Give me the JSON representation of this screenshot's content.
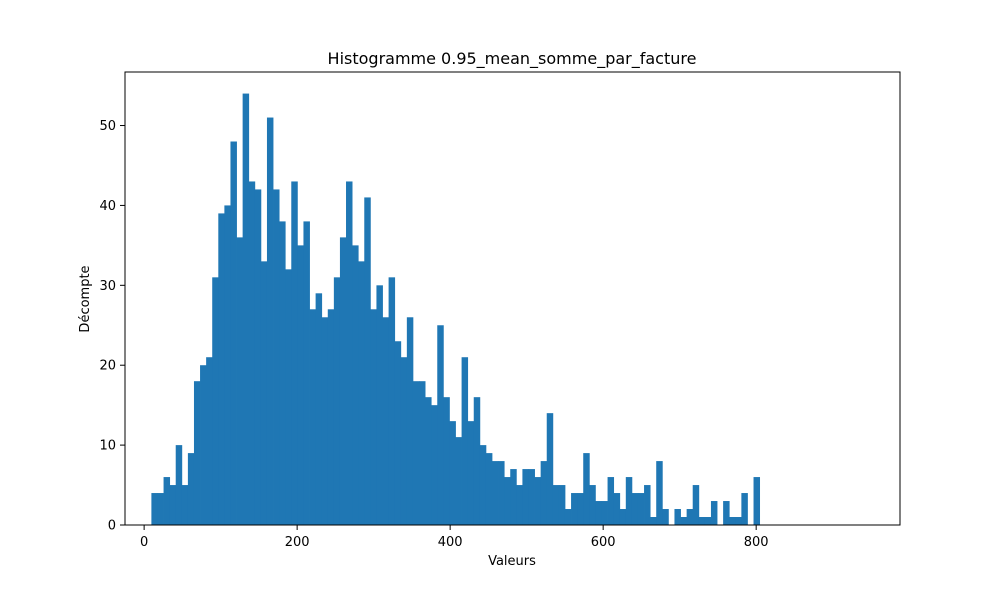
{
  "chart_data": {
    "type": "bar",
    "title": "Histogramme 0.95_mean_somme_par_facture",
    "xlabel": "Valeurs",
    "ylabel": "Décompte",
    "xlim": [
      -25,
      988
    ],
    "ylim": [
      0,
      56.7
    ],
    "xticks": [
      0,
      200,
      400,
      600,
      800
    ],
    "yticks": [
      0,
      10,
      20,
      30,
      40,
      50
    ],
    "bin_start": 9.5,
    "bin_width": 7.95,
    "bar_color": "#1f77b4",
    "grid": false,
    "counts": [
      4,
      4,
      6,
      5,
      10,
      5,
      9,
      18,
      20,
      21,
      31,
      39,
      40,
      48,
      36,
      54,
      43,
      42,
      33,
      51,
      42,
      38,
      32,
      43,
      35,
      38,
      27,
      29,
      26,
      27,
      31,
      36,
      43,
      35,
      33,
      41,
      27,
      30,
      26,
      31,
      23,
      21,
      26,
      18,
      18,
      16,
      15,
      25,
      16,
      13,
      11,
      21,
      13,
      16,
      10,
      9,
      8,
      8,
      6,
      7,
      5,
      7,
      7,
      6,
      8,
      14,
      5,
      5,
      2,
      4,
      4,
      9,
      5,
      3,
      3,
      6,
      4,
      2,
      6,
      4,
      4,
      5,
      1,
      8,
      2,
      0,
      2,
      1,
      2,
      5,
      1,
      1,
      3,
      0,
      3,
      1,
      1,
      4,
      0,
      6
    ]
  }
}
